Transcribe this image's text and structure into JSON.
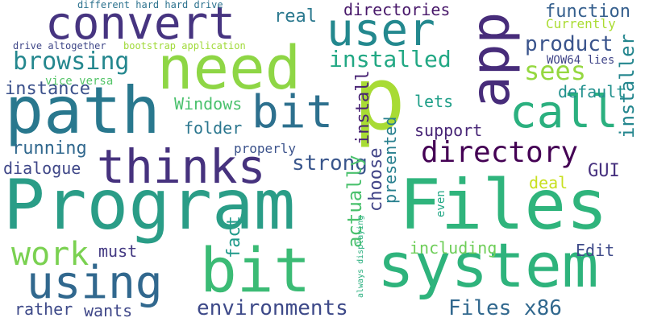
{
  "word_cloud": {
    "words": [
      {
        "text": "Program",
        "color": "#2a9d87"
      },
      {
        "text": "Files",
        "color": "#2fb47c"
      },
      {
        "text": "p",
        "color": "#a8db34"
      },
      {
        "text": "need",
        "color": "#8ed645"
      },
      {
        "text": "path",
        "color": "#29788e"
      },
      {
        "text": "bit",
        "color": "#3bbb75"
      },
      {
        "text": "system",
        "color": "#2eb37c"
      },
      {
        "text": "app",
        "color": "#472c7a"
      },
      {
        "text": "convert",
        "color": "#463480"
      },
      {
        "text": "user",
        "color": "#23888e"
      },
      {
        "text": "thinks",
        "color": "#46327e"
      },
      {
        "text": "call",
        "color": "#2bb07f"
      },
      {
        "text": "bit",
        "color": "#2d708e"
      },
      {
        "text": "using",
        "color": "#31688e"
      },
      {
        "text": "work",
        "color": "#7ad151"
      },
      {
        "text": "directory",
        "color": "#440154"
      },
      {
        "text": "browsing",
        "color": "#24878e"
      },
      {
        "text": "installed",
        "color": "#22a884"
      },
      {
        "text": "sees",
        "color": "#95d840"
      },
      {
        "text": "environments",
        "color": "#3e4a89"
      },
      {
        "text": "Files x86",
        "color": "#31688e"
      },
      {
        "text": "strong",
        "color": "#39568c"
      },
      {
        "text": "installer",
        "color": "#24868e"
      },
      {
        "text": "product",
        "color": "#3a548c"
      },
      {
        "text": "instance",
        "color": "#3b518b"
      },
      {
        "text": "function",
        "color": "#355f8d"
      },
      {
        "text": "directories",
        "color": "#48186a"
      },
      {
        "text": "real",
        "color": "#2a788e"
      },
      {
        "text": "Windows",
        "color": "#4ac16d"
      },
      {
        "text": "running",
        "color": "#31688e"
      },
      {
        "text": "dialogue",
        "color": "#3f4788"
      },
      {
        "text": "folder",
        "color": "#2a768e"
      },
      {
        "text": "install",
        "color": "#482374"
      },
      {
        "text": "choose",
        "color": "#414487"
      },
      {
        "text": "presented",
        "color": "#277f8e"
      },
      {
        "text": "actually",
        "color": "#4ac16d"
      },
      {
        "text": "fact",
        "color": "#1f9a8a"
      },
      {
        "text": "default",
        "color": "#21908d"
      },
      {
        "text": "lets",
        "color": "#1f9f88"
      },
      {
        "text": "support",
        "color": "#482677"
      },
      {
        "text": "GUI",
        "color": "#46307e"
      },
      {
        "text": "deal",
        "color": "#c8e020"
      },
      {
        "text": "including",
        "color": "#6ece58"
      },
      {
        "text": "Edit",
        "color": "#3e4a89"
      },
      {
        "text": "must",
        "color": "#443a83"
      },
      {
        "text": "rather",
        "color": "#3e4a89"
      },
      {
        "text": "wants",
        "color": "#3f4788"
      },
      {
        "text": "properly",
        "color": "#3b528b"
      },
      {
        "text": "vice versa",
        "color": "#54c568"
      },
      {
        "text": "WOW64 lies",
        "color": "#404588"
      },
      {
        "text": "Currently",
        "color": "#aadc32"
      },
      {
        "text": "even",
        "color": "#22a785"
      },
      {
        "text": "always displaying",
        "color": "#29af7f"
      },
      {
        "text": "different hard hard drive",
        "color": "#2c728e"
      },
      {
        "text": "drive altogether",
        "color": "#3f4788"
      },
      {
        "text": "bootstrap application",
        "color": "#a0da39"
      }
    ]
  }
}
